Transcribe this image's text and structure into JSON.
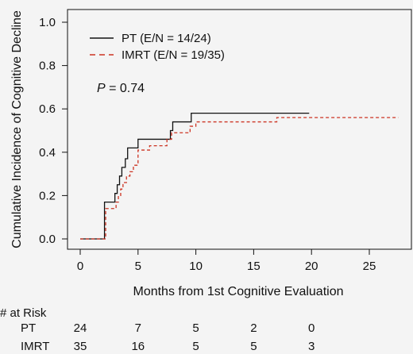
{
  "chart_data": {
    "type": "line",
    "subtype": "step",
    "title": "",
    "xlabel": "Months from 1st Cognitive Evaluation",
    "ylabel": "Cumulative Incidence of Cognitive Decline",
    "xlim": [
      -1,
      28
    ],
    "ylim": [
      -0.02,
      1.02
    ],
    "xticks": [
      0,
      5,
      10,
      15,
      20,
      25
    ],
    "yticks": [
      0.0,
      0.2,
      0.4,
      0.6,
      0.8,
      1.0
    ],
    "xtick_labels": [
      "0",
      "5",
      "10",
      "15",
      "20",
      "25"
    ],
    "ytick_labels": [
      "0.0",
      "0.2",
      "0.4",
      "0.6",
      "0.8",
      "1.0"
    ],
    "grid": false,
    "legend_position": "top-left",
    "annotation": {
      "p_symbol": "P",
      "p_rest": " = 0.74"
    },
    "series": [
      {
        "name": "PT (E/N = 14/24)",
        "color": "#111111",
        "line_style": "solid",
        "x": [
          0,
          1.9,
          2.1,
          3.0,
          3.2,
          3.4,
          3.6,
          3.9,
          4.1,
          5.0,
          7.8,
          8.0,
          9.6,
          19.8
        ],
        "y": [
          0,
          0,
          0.17,
          0.21,
          0.25,
          0.29,
          0.33,
          0.37,
          0.42,
          0.46,
          0.5,
          0.54,
          0.58,
          0.58
        ]
      },
      {
        "name": "IMRT (E/N = 19/35)",
        "color": "#cc3322",
        "line_style": "dashed",
        "x": [
          0,
          2.0,
          2.2,
          3.1,
          3.3,
          3.5,
          3.7,
          4.0,
          4.3,
          4.6,
          5.0,
          6.0,
          7.5,
          7.9,
          9.5,
          10.0,
          17.0,
          27.5
        ],
        "y": [
          0,
          0,
          0.14,
          0.17,
          0.2,
          0.23,
          0.26,
          0.29,
          0.31,
          0.34,
          0.41,
          0.43,
          0.46,
          0.49,
          0.52,
          0.54,
          0.56,
          0.56
        ]
      }
    ]
  },
  "risk_table": {
    "header": "# at Risk",
    "times": [
      0,
      5,
      10,
      15,
      20
    ],
    "rows": [
      {
        "label": "PT",
        "values": [
          "24",
          "7",
          "5",
          "2",
          "0"
        ]
      },
      {
        "label": "IMRT",
        "values": [
          "35",
          "16",
          "5",
          "5",
          "3"
        ]
      }
    ]
  }
}
